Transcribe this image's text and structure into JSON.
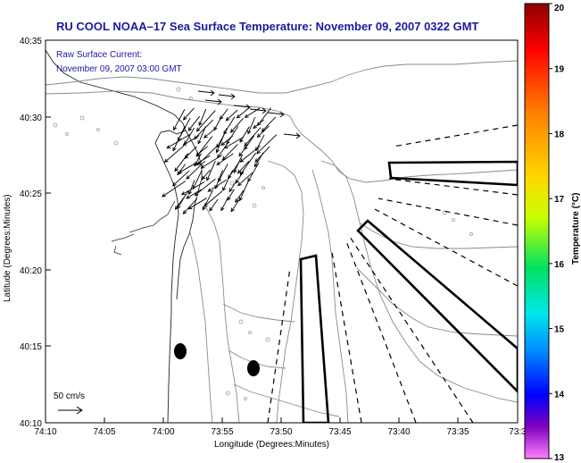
{
  "title": "RU COOL  NOAA–17  Sea Surface Temperature:  November 09, 2007 0322 GMT",
  "annotation": {
    "line1": "Raw Surface Current:",
    "line2": "November 09, 2007 03:00 GMT"
  },
  "scale_label": "50 cm/s",
  "x_axis": {
    "label": "Longitude (Degrees:Minutes)",
    "ticks": [
      "74:10",
      "74:05",
      "74:00",
      "73:55",
      "73:50",
      "73:45",
      "73:40",
      "73:35",
      "73:3"
    ]
  },
  "y_axis": {
    "label": "Latitude (Degrees:Minutes)",
    "ticks": [
      "40:35",
      "40:30",
      "40:25",
      "40:20",
      "40:15",
      "40:10"
    ]
  },
  "colorbar": {
    "label": "Temperature (°C)",
    "ticks": [
      "20",
      "19",
      "18",
      "17",
      "16",
      "15",
      "14",
      "13"
    ],
    "stops": [
      "#8b0000",
      "#ff0000",
      "#ff8000",
      "#ffd700",
      "#c8ff00",
      "#00e060",
      "#00e8e8",
      "#0090ff",
      "#0000ff",
      "#8000c0",
      "#ff80ff"
    ]
  }
}
